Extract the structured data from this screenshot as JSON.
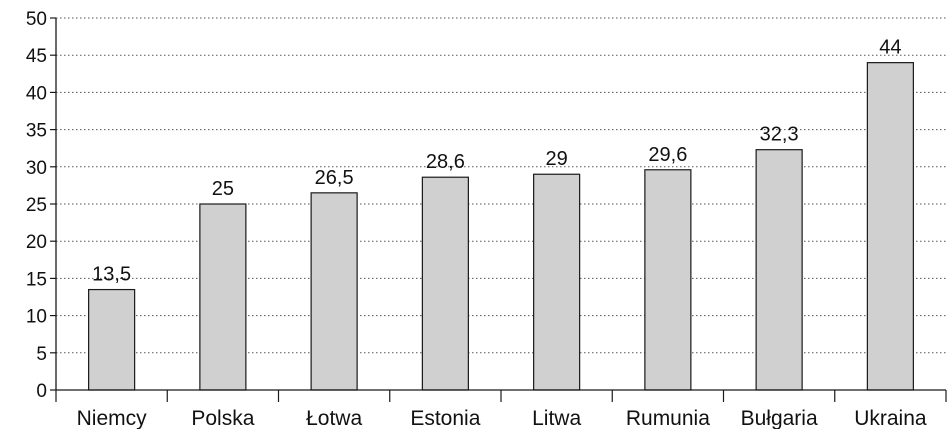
{
  "chart_data": {
    "type": "bar",
    "title": "",
    "xlabel": "",
    "ylabel": "",
    "categories": [
      "Niemcy",
      "Polska",
      "Łotwa",
      "Estonia",
      "Litwa",
      "Rumunia",
      "Bułgaria",
      "Ukraina"
    ],
    "values": [
      13.5,
      25,
      26.5,
      28.6,
      29,
      29.6,
      32.3,
      44
    ],
    "value_labels": [
      "13,5",
      "25",
      "26,5",
      "28,6",
      "29",
      "29,6",
      "32,3",
      "44"
    ],
    "ylim": [
      0,
      50
    ],
    "yticks": [
      0,
      5,
      10,
      15,
      20,
      25,
      30,
      35,
      40,
      45,
      50
    ],
    "ytick_labels": [
      "0",
      "5",
      "10",
      "15",
      "20",
      "25",
      "30",
      "35",
      "40",
      "45",
      "50"
    ],
    "grid": "horizontal dotted",
    "legend": "none",
    "colors": {
      "bar_fill": "#d0d0d0",
      "bar_stroke": "#1a1a1a",
      "grid": "#555555",
      "axis": "#1a1a1a"
    }
  }
}
